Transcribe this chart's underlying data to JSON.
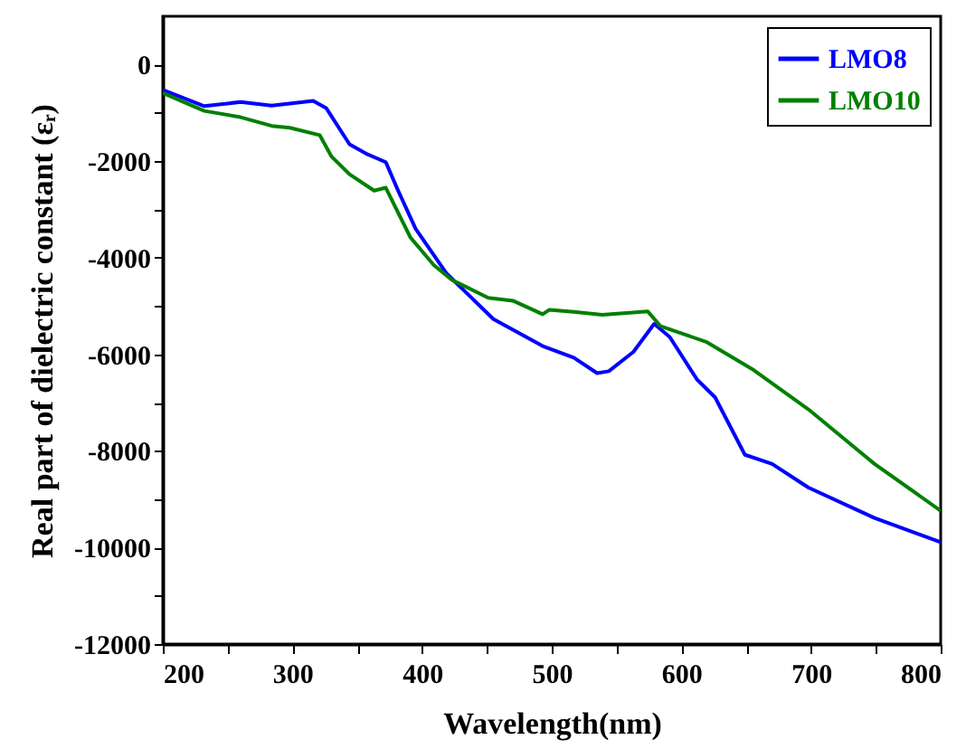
{
  "chart_data": {
    "type": "line",
    "xlabel": "Wavelength(nm)",
    "ylabel": "Real part of dielectric constant (εᵣ)",
    "xlim": [
      200,
      800
    ],
    "ylim": [
      -12000,
      1000
    ],
    "xticks": [
      200,
      {
        "value": 250,
        "label": null
      },
      300,
      {
        "value": 350,
        "label": null
      },
      400,
      {
        "value": 450,
        "label": null
      },
      500,
      {
        "value": 550,
        "label": null
      },
      600,
      {
        "value": 650,
        "label": null
      },
      700,
      {
        "value": 750,
        "label": null
      },
      800
    ],
    "yticks": [
      -12000,
      {
        "value": -11000,
        "label": null
      },
      -10000,
      {
        "value": -9000,
        "label": null
      },
      -8000,
      {
        "value": -7000,
        "label": null
      },
      -6000,
      {
        "value": -5000,
        "label": null
      },
      -4000,
      {
        "value": -3000,
        "label": null
      },
      -2000,
      {
        "value": -1000,
        "label": null
      },
      0
    ],
    "grid": false,
    "legend": "top right",
    "line_style": "solid",
    "marker": "none",
    "series": [
      {
        "name": "LMO8",
        "color": "#0000ff",
        "x": [
          200,
          232,
          260,
          284,
          316,
          326,
          344,
          358,
          372,
          381,
          395,
          419,
          455,
          493,
          517,
          535,
          544,
          563,
          579,
          591,
          612,
          626,
          649,
          670,
          698,
          749,
          800
        ],
        "values": [
          -524,
          -860,
          -775,
          -850,
          -750,
          -900,
          -1650,
          -1860,
          -2020,
          -2580,
          -3400,
          -4330,
          -5270,
          -5830,
          -6070,
          -6390,
          -6350,
          -5950,
          -5370,
          -5640,
          -6520,
          -6890,
          -8080,
          -8270,
          -8760,
          -9390,
          -9890
        ]
      },
      {
        "name": "LMO10",
        "color": "#008000",
        "x": [
          200,
          232,
          260,
          284,
          298,
          321,
          330,
          344,
          363,
          372,
          391,
          409,
          423,
          451,
          470,
          493,
          498,
          517,
          539,
          574,
          584,
          619,
          656,
          698,
          749,
          800
        ],
        "values": [
          -587,
          -960,
          -1090,
          -1270,
          -1310,
          -1460,
          -1900,
          -2270,
          -2610,
          -2550,
          -3580,
          -4150,
          -4460,
          -4830,
          -4890,
          -5170,
          -5080,
          -5120,
          -5180,
          -5110,
          -5420,
          -5740,
          -6330,
          -7140,
          -8270,
          -9240
        ]
      }
    ]
  }
}
